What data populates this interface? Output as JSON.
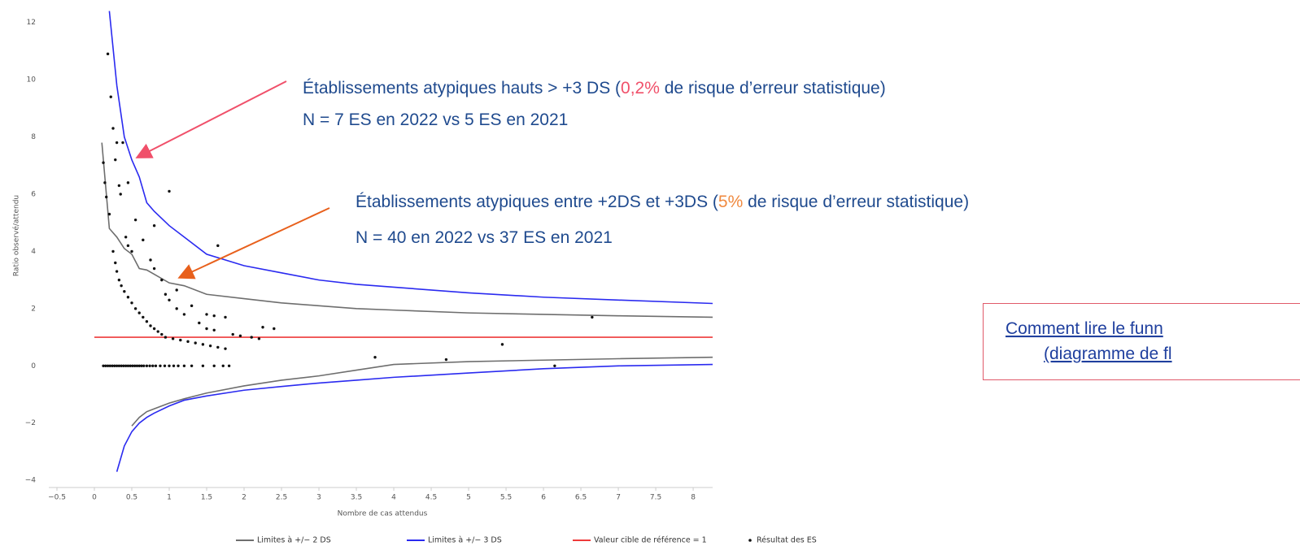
{
  "chart_data": {
    "type": "line",
    "ylabel": "Ratio observé/attendu",
    "xlabel": "Nombre de cas attendus",
    "xlim": [
      -0.5,
      8.26
    ],
    "ylim": [
      -4.25,
      12.5
    ],
    "xticks": [
      {
        "value": -0.5,
        "label": "−0.5"
      },
      0,
      0.5,
      1,
      1.5,
      2,
      2.5,
      3,
      3.5,
      4,
      4.5,
      5,
      5.5,
      6,
      6.5,
      7,
      7.5,
      8
    ],
    "yticks": [
      {
        "value": -4,
        "label": "−4"
      },
      {
        "value": -2,
        "label": "−2"
      },
      0,
      2,
      4,
      6,
      8,
      10,
      12
    ],
    "grid": false,
    "x": [
      0.1,
      0.2,
      0.3,
      0.4,
      0.5,
      0.6,
      0.7,
      0.8,
      1,
      1.2,
      1.5,
      2,
      2.5,
      3,
      3.5,
      4,
      5,
      6,
      7,
      8.26
    ],
    "series": [
      {
        "name": "Limites à +/− 2 DS",
        "color": "#6e6e6e",
        "type": "line",
        "values": [
          7.8,
          4.8,
          4.5,
          4.1,
          3.9,
          3.4,
          3.35,
          3.2,
          2.9,
          2.8,
          2.5,
          2.35,
          2.2,
          2.1,
          2.0,
          1.95,
          1.85,
          1.8,
          1.75,
          1.7
        ],
        "lower": [
          null,
          null,
          null,
          null,
          -2.1,
          -1.8,
          -1.6,
          -1.5,
          -1.3,
          -1.15,
          -0.95,
          -0.7,
          -0.5,
          -0.35,
          -0.15,
          0.05,
          0.15,
          0.2,
          0.25,
          0.3
        ]
      },
      {
        "name": "Limites à +/− 3 DS",
        "color": "#2a2af0",
        "type": "line",
        "values": [
          null,
          12.4,
          9.8,
          8.0,
          7.2,
          6.6,
          5.7,
          5.4,
          4.9,
          4.5,
          3.9,
          3.5,
          3.25,
          3.0,
          2.85,
          2.75,
          2.55,
          2.4,
          2.3,
          2.18
        ],
        "lower": [
          null,
          null,
          -3.7,
          -2.8,
          -2.3,
          -2.0,
          -1.8,
          -1.65,
          -1.4,
          -1.2,
          -1.05,
          -0.85,
          -0.72,
          -0.6,
          -0.5,
          -0.4,
          -0.25,
          -0.1,
          0.0,
          0.05
        ]
      },
      {
        "name": "Valeur cible de référence = 1",
        "color": "#ee3a3a",
        "type": "hline",
        "x": [
          0
        ],
        "values": [
          1
        ]
      },
      {
        "name": "Résultat des ES",
        "color": "#111111",
        "type": "scatter",
        "x": [
          0.18,
          0.22,
          0.25,
          0.3,
          0.38,
          0.28,
          0.12,
          0.33,
          0.35,
          0.45,
          0.14,
          0.16,
          0.2,
          0.55,
          0.65,
          0.8,
          1.0,
          1.65,
          0.42,
          0.45,
          0.5,
          0.25,
          0.28,
          0.3,
          0.33,
          0.36,
          0.4,
          0.45,
          0.5,
          0.55,
          0.6,
          0.65,
          0.7,
          0.75,
          0.8,
          0.85,
          0.9,
          0.95,
          1.05,
          1.15,
          1.25,
          1.35,
          1.45,
          1.55,
          1.65,
          1.75,
          0.75,
          0.8,
          0.9,
          0.95,
          1.0,
          1.1,
          1.1,
          1.2,
          1.3,
          1.4,
          1.5,
          1.6,
          1.75,
          1.5,
          1.6,
          1.85,
          1.95,
          2.1,
          2.2,
          2.25,
          2.4,
          3.75,
          4.7,
          5.45,
          6.15,
          6.65,
          0.12,
          0.15,
          0.18,
          0.21,
          0.24,
          0.27,
          0.3,
          0.33,
          0.36,
          0.39,
          0.42,
          0.45,
          0.48,
          0.51,
          0.54,
          0.57,
          0.6,
          0.63,
          0.66,
          0.7,
          0.74,
          0.78,
          0.82,
          0.88,
          0.94,
          1.0,
          1.06,
          1.12,
          1.2,
          1.3,
          1.45,
          1.6,
          1.72,
          1.8
        ],
        "values": [
          10.9,
          9.4,
          8.3,
          7.8,
          7.8,
          7.2,
          7.1,
          6.3,
          6.0,
          6.4,
          6.4,
          5.9,
          5.3,
          5.1,
          4.4,
          4.9,
          6.1,
          4.2,
          4.5,
          4.2,
          4.0,
          4.0,
          3.6,
          3.3,
          3.0,
          2.8,
          2.6,
          2.4,
          2.2,
          2.0,
          1.85,
          1.7,
          1.55,
          1.4,
          1.3,
          1.2,
          1.1,
          1.0,
          0.95,
          0.9,
          0.85,
          0.8,
          0.75,
          0.7,
          0.65,
          0.6,
          3.7,
          3.4,
          3.0,
          2.5,
          2.3,
          2.65,
          2.0,
          1.8,
          2.1,
          1.5,
          1.8,
          1.75,
          1.7,
          1.3,
          1.25,
          1.1,
          1.05,
          1.0,
          0.95,
          1.35,
          1.3,
          0.3,
          0.22,
          0.75,
          0.0,
          1.7,
          0,
          0,
          0,
          0,
          0,
          0,
          0,
          0,
          0,
          0,
          0,
          0,
          0,
          0,
          0,
          0,
          0,
          0,
          0,
          0,
          0,
          0,
          0,
          0,
          0,
          0,
          0,
          0,
          0,
          0,
          0,
          0,
          0,
          0
        ]
      }
    ]
  },
  "annotations": [
    {
      "line1": [
        "Établissements atypiques hauts > +3 DS (",
        "0,2%",
        " de risque d’erreur statistique)"
      ],
      "line2": "N = 7 ES en 2022 vs 5 ES en 2021"
    },
    {
      "line1": [
        "Établissements atypiques entre +2DS et +3DS (",
        "5%",
        " de risque d’erreur statistique)"
      ],
      "line2": "N = 40 en 2022 vs 37 ES en 2021"
    }
  ],
  "link": {
    "line1": "Comment lire le funn",
    "line2": "(diagramme de fl"
  }
}
